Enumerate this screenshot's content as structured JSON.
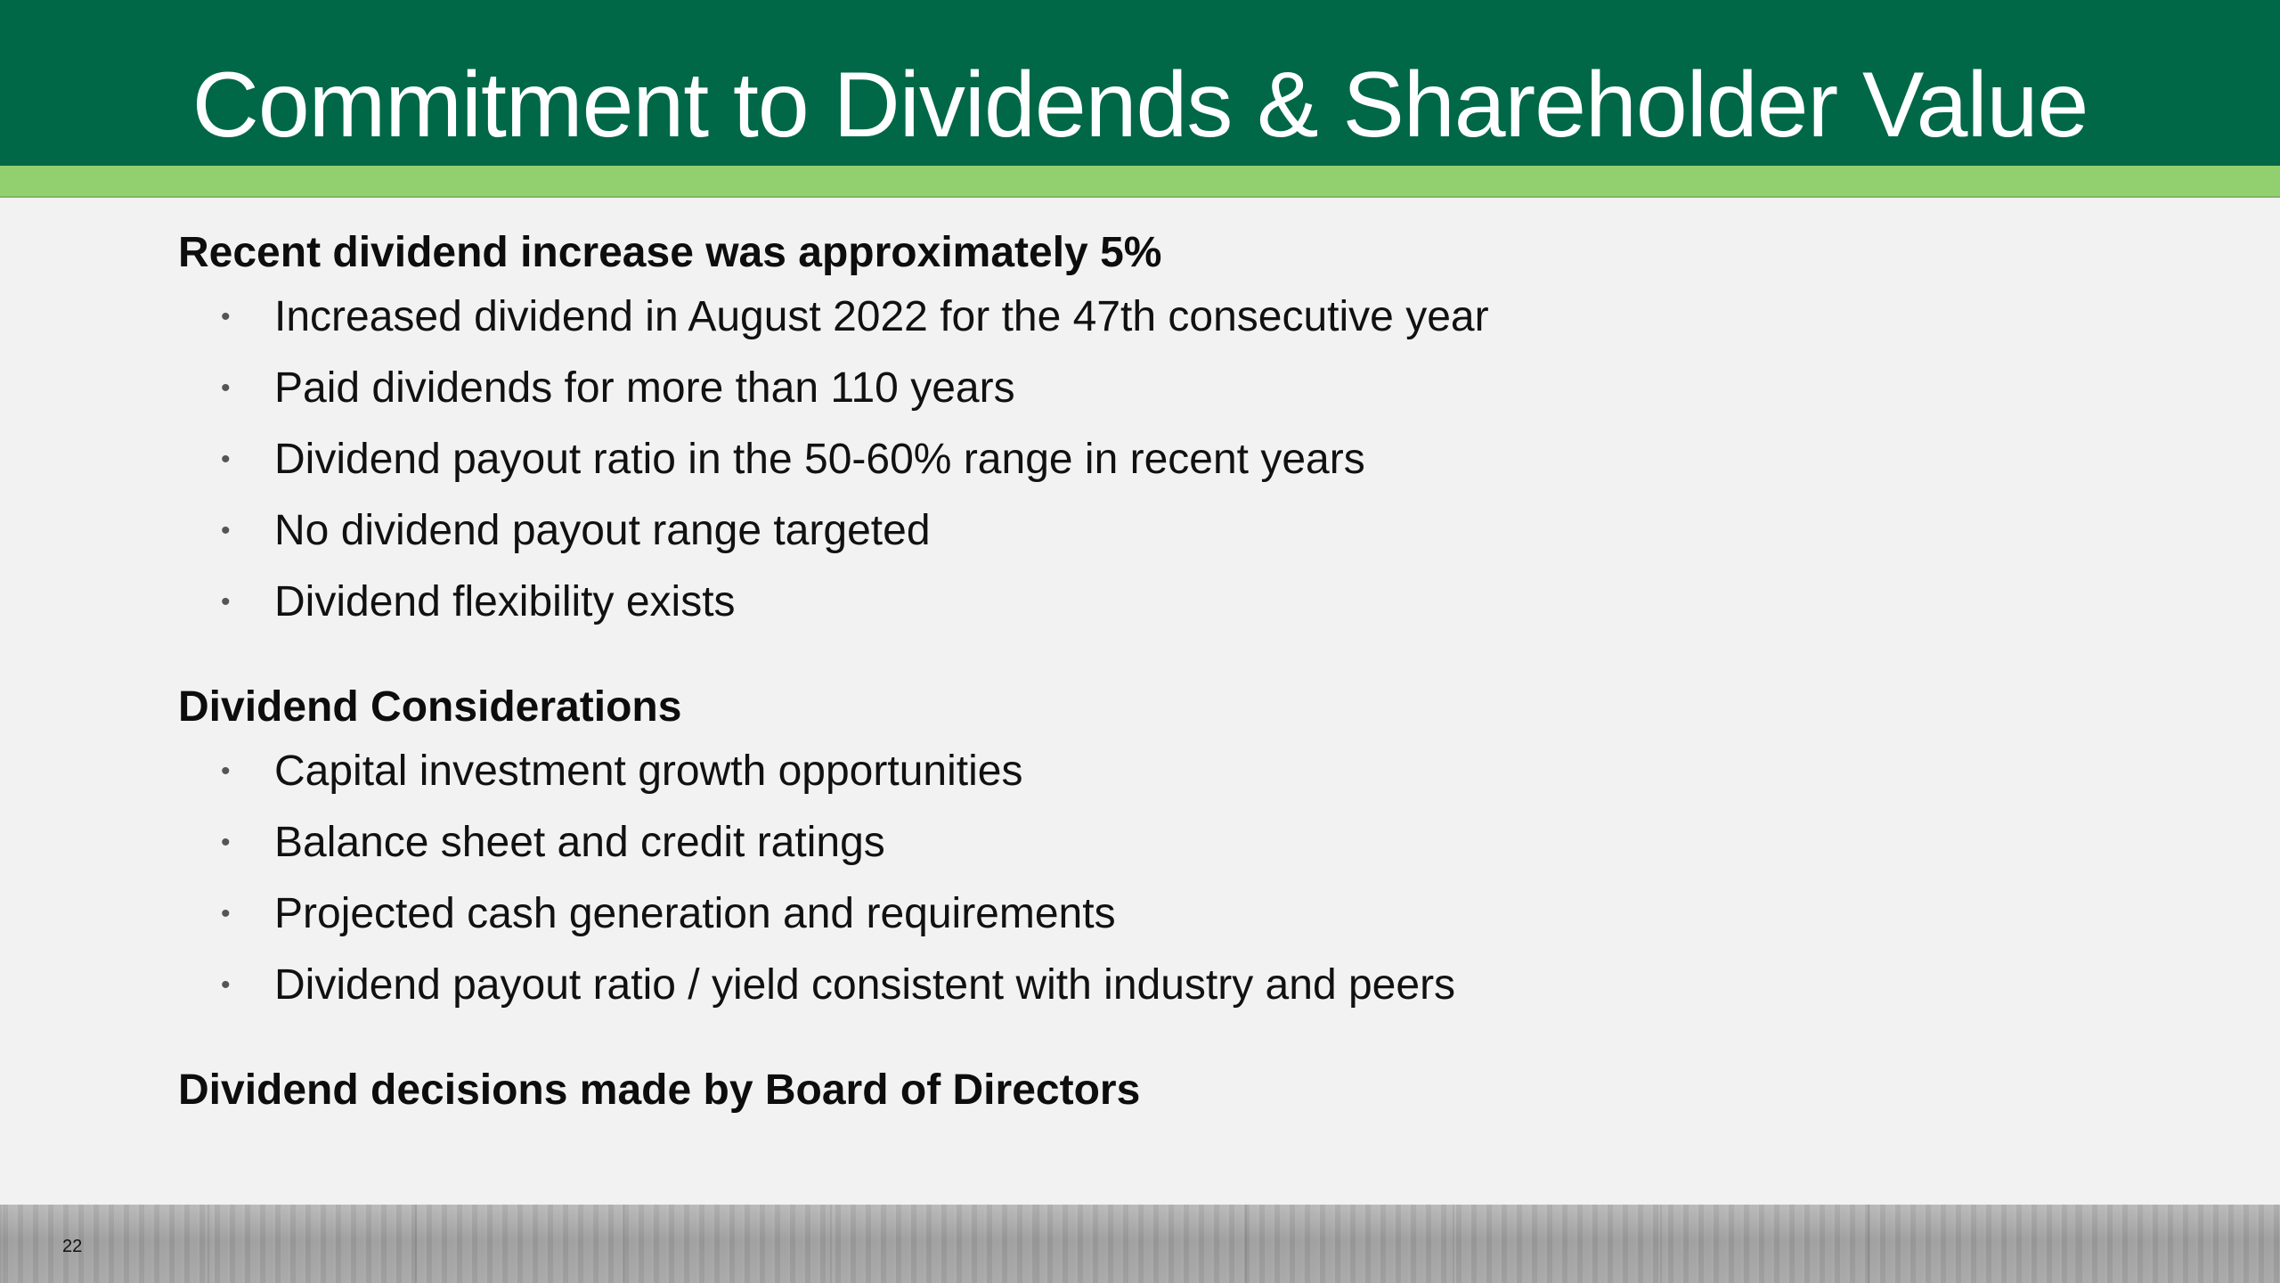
{
  "slide": {
    "title": "Commitment to Dividends & Shareholder Value",
    "page_number": "22",
    "colors": {
      "title_bar": "#006847",
      "accent_bar": "#92d06f",
      "background": "#f2f2f2"
    }
  },
  "sections": [
    {
      "heading": "Recent dividend increase was approximately 5%",
      "bullets": [
        "Increased dividend in August 2022 for the 47th consecutive year",
        "Paid dividends for more than 110 years",
        "Dividend payout ratio in the 50-60% range in recent years",
        "No dividend payout range targeted",
        "Dividend flexibility exists"
      ]
    },
    {
      "heading": "Dividend Considerations",
      "bullets": [
        "Capital investment growth opportunities",
        "Balance sheet and credit ratings",
        "Projected cash generation and requirements",
        "Dividend payout ratio / yield consistent with industry and peers"
      ]
    },
    {
      "heading": "Dividend decisions made by Board of Directors",
      "bullets": []
    }
  ]
}
